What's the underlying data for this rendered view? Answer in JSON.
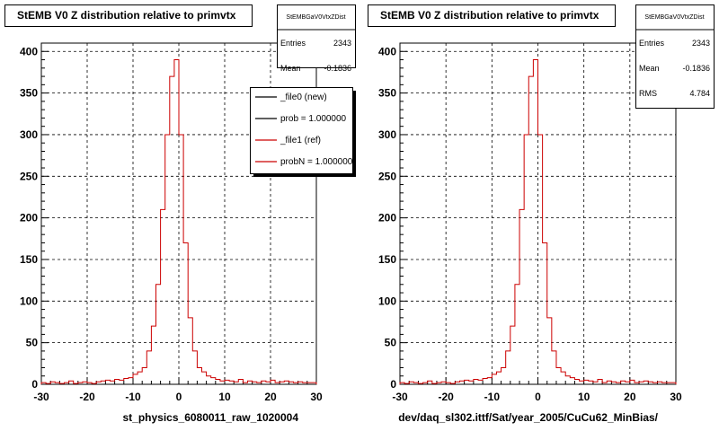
{
  "chart_data": [
    {
      "type": "step-histogram",
      "title": "StEMB V0 Z distribution relative to primvtx",
      "xlabel": "st_physics_6080011_raw_1020004",
      "xlim": [
        -30,
        30
      ],
      "ylim": [
        0,
        410
      ],
      "xticks": [
        -30,
        -20,
        -10,
        0,
        10,
        20,
        30
      ],
      "xtick_labels": [
        "-30",
        "-20",
        "-10",
        "0",
        "10",
        "20",
        "30"
      ],
      "yticks": [
        0,
        50,
        100,
        150,
        200,
        250,
        300,
        350,
        400
      ],
      "ytick_labels": [
        "0",
        "50",
        "100",
        "150",
        "200",
        "250",
        "300",
        "350",
        "400"
      ],
      "grid": true,
      "bin_start": -30,
      "bin_width": 1,
      "series": [
        {
          "color": "#cc0000",
          "values": [
            2,
            1,
            3,
            2,
            1,
            2,
            4,
            1,
            2,
            3,
            2,
            1,
            3,
            4,
            5,
            4,
            6,
            5,
            7,
            8,
            12,
            15,
            20,
            40,
            70,
            120,
            210,
            300,
            370,
            390,
            300,
            170,
            80,
            40,
            20,
            15,
            10,
            8,
            6,
            4,
            5,
            4,
            3,
            6,
            2,
            4,
            3,
            2,
            4,
            3,
            5,
            2,
            3,
            4,
            3,
            2,
            3,
            2,
            2,
            2
          ]
        }
      ],
      "stats": {
        "name": "StEMBGaV0VtxZDist",
        "rows": [
          {
            "label": "Entries",
            "value": "2343"
          },
          {
            "label": "Mean",
            "value": "-0.1836"
          }
        ]
      },
      "legend": {
        "placement": "top-right",
        "entries": [
          {
            "label": "_file0 (new)",
            "color": "#000000"
          },
          {
            "label": "prob = 1.000000",
            "color": "#000000"
          },
          {
            "label": "_file1 (ref)",
            "color": "#cc0000"
          },
          {
            "label": "probN = 1.000000",
            "color": "#cc0000"
          }
        ]
      }
    },
    {
      "type": "step-histogram",
      "title": "StEMB V0 Z distribution relative to primvtx",
      "xlabel": "dev/daq_sl302.ittf/Sat/year_2005/CuCu62_MinBias/",
      "xlim": [
        -30,
        30
      ],
      "ylim": [
        0,
        410
      ],
      "xticks": [
        -30,
        -20,
        -10,
        0,
        10,
        20,
        30
      ],
      "xtick_labels": [
        "-30",
        "-20",
        "-10",
        "0",
        "10",
        "20",
        "30"
      ],
      "yticks": [
        0,
        50,
        100,
        150,
        200,
        250,
        300,
        350,
        400
      ],
      "ytick_labels": [
        "0",
        "50",
        "100",
        "150",
        "200",
        "250",
        "300",
        "350",
        "400"
      ],
      "grid": true,
      "bin_start": -30,
      "bin_width": 1,
      "series": [
        {
          "color": "#cc0000",
          "values": [
            2,
            1,
            3,
            2,
            1,
            2,
            4,
            1,
            2,
            3,
            2,
            1,
            3,
            4,
            5,
            4,
            6,
            5,
            7,
            8,
            12,
            15,
            20,
            40,
            70,
            120,
            210,
            300,
            370,
            390,
            300,
            170,
            80,
            40,
            20,
            15,
            10,
            8,
            6,
            4,
            5,
            4,
            3,
            6,
            2,
            4,
            3,
            2,
            4,
            3,
            5,
            2,
            3,
            4,
            3,
            2,
            3,
            2,
            2,
            2
          ]
        }
      ],
      "stats": {
        "name": "StEMBGaV0VtxZDist",
        "rows": [
          {
            "label": "Entries",
            "value": "2343"
          },
          {
            "label": "Mean",
            "value": "-0.1836"
          },
          {
            "label": "RMS",
            "value": "4.784"
          }
        ]
      }
    }
  ]
}
